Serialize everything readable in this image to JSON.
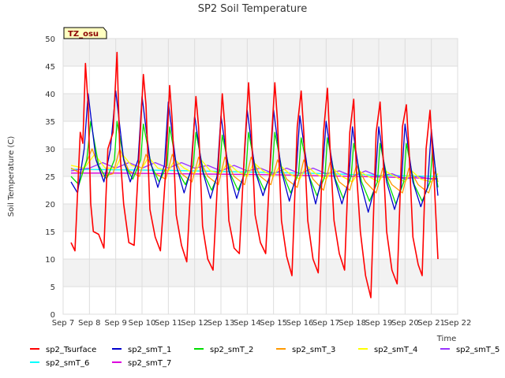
{
  "chart_data": {
    "type": "line",
    "title": "SP2 Soil Temperature",
    "xlabel": "Time",
    "ylabel": "Soil Temperature (C)",
    "badge": "TZ_osu",
    "xlim": [
      0,
      15
    ],
    "ylim": [
      0,
      50
    ],
    "yticks": [
      0,
      5,
      10,
      15,
      20,
      25,
      30,
      35,
      40,
      45,
      50
    ],
    "xticks": [
      {
        "value": 0,
        "label": "Sep 7"
      },
      {
        "value": 1,
        "label": "Sep 8"
      },
      {
        "value": 2,
        "label": "Sep 9"
      },
      {
        "value": 3,
        "label": "Sep 10"
      },
      {
        "value": 4,
        "label": "Sep 11"
      },
      {
        "value": 5,
        "label": "Sep 12"
      },
      {
        "value": 6,
        "label": "Sep 13"
      },
      {
        "value": 7,
        "label": "Sep 14"
      },
      {
        "value": 8,
        "label": "Sep 15"
      },
      {
        "value": 9,
        "label": "Sep 16"
      },
      {
        "value": 10,
        "label": "Sep 17"
      },
      {
        "value": 11,
        "label": "Sep 18"
      },
      {
        "value": 12,
        "label": "Sep 19"
      },
      {
        "value": 13,
        "label": "Sep 20"
      },
      {
        "value": 14,
        "label": "Sep 21"
      },
      {
        "value": 15,
        "label": "Sep 22"
      }
    ],
    "x_unit": "days since Sep 7 00:00",
    "series": [
      {
        "name": "sp2_Tsurface",
        "color": "#ff0000",
        "stroke": 1.6,
        "x": [
          0.3,
          0.45,
          0.55,
          0.65,
          0.75,
          0.85,
          0.95,
          1.05,
          1.15,
          1.35,
          1.55,
          1.7,
          1.9,
          2.05,
          2.15,
          2.3,
          2.5,
          2.7,
          2.9,
          3.05,
          3.15,
          3.3,
          3.5,
          3.7,
          3.9,
          4.05,
          4.15,
          4.3,
          4.5,
          4.7,
          4.9,
          5.05,
          5.15,
          5.3,
          5.5,
          5.7,
          5.9,
          6.05,
          6.15,
          6.3,
          6.5,
          6.7,
          6.9,
          7.05,
          7.15,
          7.3,
          7.5,
          7.7,
          7.9,
          8.05,
          8.15,
          8.3,
          8.5,
          8.7,
          8.9,
          9.05,
          9.15,
          9.3,
          9.5,
          9.7,
          9.9,
          10.05,
          10.15,
          10.3,
          10.5,
          10.7,
          10.9,
          11.05,
          11.15,
          11.3,
          11.5,
          11.7,
          11.9,
          12.05,
          12.15,
          12.3,
          12.5,
          12.7,
          12.9,
          13.05,
          13.15,
          13.3,
          13.5,
          13.65,
          13.8,
          13.95,
          14.1,
          14.25
        ],
        "y": [
          13,
          11.5,
          22,
          33,
          31,
          45.5,
          38,
          20,
          15,
          14.5,
          12,
          30,
          33,
          47.5,
          30,
          20,
          13,
          12.5,
          30,
          43.5,
          38,
          19,
          14,
          11.5,
          26,
          41.5,
          35,
          18,
          12.5,
          9.5,
          28,
          39.5,
          34,
          16,
          10,
          8,
          27,
          40,
          34,
          17,
          12,
          11,
          30,
          42,
          34,
          18,
          13,
          11,
          30,
          42,
          35,
          17,
          10.5,
          7,
          34,
          40.5,
          33,
          17,
          10,
          7.5,
          33,
          41,
          30,
          17,
          11,
          8,
          33,
          39,
          26,
          15,
          7,
          3,
          33,
          38.5,
          30,
          15,
          8,
          5.5,
          34,
          38,
          30,
          14,
          9,
          7,
          30,
          37,
          25,
          10
        ]
      },
      {
        "name": "sp2_smT_1",
        "color": "#0000cc",
        "stroke": 1.3,
        "x": [
          0.3,
          0.55,
          0.8,
          0.95,
          1.25,
          1.55,
          1.8,
          2.0,
          2.3,
          2.55,
          2.85,
          3.0,
          3.3,
          3.6,
          3.85,
          4.0,
          4.3,
          4.6,
          4.85,
          5.0,
          5.3,
          5.6,
          5.85,
          6.0,
          6.3,
          6.6,
          6.85,
          7.0,
          7.3,
          7.6,
          7.85,
          8.0,
          8.3,
          8.6,
          8.85,
          9.0,
          9.3,
          9.6,
          9.85,
          10.0,
          10.3,
          10.6,
          10.85,
          11.0,
          11.3,
          11.6,
          11.85,
          12.0,
          12.3,
          12.6,
          12.85,
          13.0,
          13.3,
          13.6,
          13.85,
          14.0,
          14.25
        ],
        "y": [
          24,
          22,
          30,
          40,
          28,
          24,
          30,
          40.5,
          28,
          24,
          28,
          39.5,
          28,
          23,
          27,
          38.5,
          27,
          22,
          26,
          36,
          26,
          21,
          25,
          36,
          26,
          21,
          25,
          37,
          26,
          21.5,
          25,
          37,
          26,
          20.5,
          25,
          36,
          26,
          20,
          25,
          35,
          25,
          20,
          24,
          34,
          24,
          18.5,
          23,
          34,
          24,
          19,
          23,
          34.5,
          24,
          19.5,
          23,
          33.5,
          21.5
        ]
      },
      {
        "name": "sp2_smT_2",
        "color": "#00dd00",
        "stroke": 1.3,
        "x": [
          0.3,
          0.6,
          0.9,
          1.05,
          1.35,
          1.65,
          1.95,
          2.05,
          2.35,
          2.65,
          2.95,
          3.05,
          3.35,
          3.65,
          3.95,
          4.05,
          4.35,
          4.65,
          4.95,
          5.05,
          5.35,
          5.65,
          5.95,
          6.05,
          6.35,
          6.65,
          6.95,
          7.05,
          7.35,
          7.65,
          7.95,
          8.05,
          8.35,
          8.65,
          8.95,
          9.05,
          9.35,
          9.65,
          9.95,
          10.05,
          10.35,
          10.65,
          10.95,
          11.05,
          11.35,
          11.65,
          11.95,
          12.05,
          12.35,
          12.65,
          12.95,
          13.05,
          13.35,
          13.65,
          13.95,
          14.05,
          14.25
        ],
        "y": [
          25,
          23.5,
          28,
          35,
          27,
          24.5,
          28,
          35,
          27,
          24.5,
          28,
          34.5,
          27,
          24,
          27,
          34,
          26,
          23.5,
          27,
          33,
          25.5,
          22.5,
          26,
          32.5,
          25.5,
          22.5,
          26,
          33,
          25.5,
          22.5,
          26,
          33,
          25.5,
          22,
          25.5,
          32,
          25,
          21.5,
          25,
          32,
          24.5,
          21,
          25,
          31,
          24,
          20.5,
          24,
          31,
          24,
          20,
          24,
          31,
          23.5,
          20.5,
          24,
          30,
          23
        ]
      },
      {
        "name": "sp2_smT_3",
        "color": "#ff9900",
        "stroke": 1.3,
        "x": [
          0.3,
          0.7,
          1.1,
          1.5,
          1.9,
          2.15,
          2.5,
          2.9,
          3.15,
          3.5,
          3.9,
          4.15,
          4.5,
          4.9,
          5.15,
          5.5,
          5.9,
          6.15,
          6.5,
          6.9,
          7.15,
          7.5,
          7.9,
          8.15,
          8.5,
          8.9,
          9.15,
          9.5,
          9.9,
          10.15,
          10.5,
          10.9,
          11.15,
          11.5,
          11.9,
          12.15,
          12.5,
          12.9,
          13.15,
          13.5,
          13.9,
          14.15,
          14.25
        ],
        "y": [
          26.5,
          25.5,
          30,
          25,
          25.5,
          30,
          26,
          25,
          29,
          25.5,
          24.5,
          29,
          25.5,
          24,
          28.5,
          25,
          23.5,
          28.5,
          25,
          23.5,
          28.5,
          25,
          23.5,
          28,
          24.5,
          23,
          28,
          24.5,
          22.5,
          27.5,
          24,
          22.5,
          27,
          24,
          22,
          26.5,
          23.5,
          22,
          26.5,
          23.5,
          22,
          26,
          24
        ]
      },
      {
        "name": "sp2_smT_4",
        "color": "#ffff00",
        "stroke": 1.3,
        "x": [
          0.3,
          0.8,
          1.2,
          1.6,
          2.0,
          2.25,
          2.6,
          3.0,
          3.25,
          3.6,
          4.0,
          4.25,
          4.6,
          5.0,
          5.25,
          5.6,
          6.0,
          6.25,
          6.6,
          7.0,
          7.25,
          7.6,
          8.0,
          8.25,
          8.6,
          9.0,
          9.25,
          9.6,
          10.0,
          10.25,
          10.6,
          11.0,
          11.25,
          11.6,
          12.0,
          12.25,
          12.6,
          13.0,
          13.25,
          13.6,
          14.0,
          14.25
        ],
        "y": [
          27,
          26.5,
          29,
          26.5,
          26.5,
          29,
          27,
          26.5,
          28.5,
          26.5,
          26,
          28,
          26.5,
          25.5,
          28,
          26,
          25.5,
          27.5,
          26,
          25,
          27.5,
          26,
          25,
          27,
          25.5,
          24.5,
          27,
          25.5,
          24.5,
          26.5,
          25,
          24,
          26,
          25,
          24,
          26,
          25,
          24,
          26,
          24.5,
          24,
          25.5
        ]
      },
      {
        "name": "sp2_smT_5",
        "color": "#9933ff",
        "stroke": 1.3,
        "x": [
          0.3,
          1.0,
          1.5,
          2.0,
          2.5,
          3.0,
          3.5,
          4.0,
          4.5,
          5.0,
          5.5,
          6.0,
          6.5,
          7.0,
          7.5,
          8.0,
          8.5,
          9.0,
          9.5,
          10.0,
          10.5,
          11.0,
          11.5,
          12.0,
          12.5,
          13.0,
          13.5,
          14.0,
          14.25
        ],
        "y": [
          26,
          26.5,
          27.5,
          26.5,
          27.5,
          26.5,
          27.5,
          26.5,
          27.5,
          26.5,
          27,
          26,
          27,
          26,
          26.5,
          25.5,
          26.5,
          25.5,
          26.5,
          25.5,
          26,
          25,
          26,
          25,
          25.5,
          24.5,
          25,
          24.5,
          24.5
        ]
      },
      {
        "name": "sp2_smT_6",
        "color": "#00ffff",
        "stroke": 1.3,
        "x": [
          0.3,
          2.0,
          4.0,
          6.0,
          8.0,
          10.0,
          12.0,
          14.25
        ],
        "y": [
          26.3,
          26.2,
          26.1,
          25.9,
          25.7,
          25.5,
          25.2,
          25.0
        ]
      },
      {
        "name": "sp2_smT_7",
        "color": "#dd00dd",
        "stroke": 1.3,
        "x": [
          0.3,
          2.0,
          4.0,
          6.0,
          8.0,
          10.0,
          12.0,
          14.25
        ],
        "y": [
          25.6,
          25.6,
          25.5,
          25.4,
          25.3,
          25.1,
          24.9,
          24.6
        ]
      }
    ]
  }
}
